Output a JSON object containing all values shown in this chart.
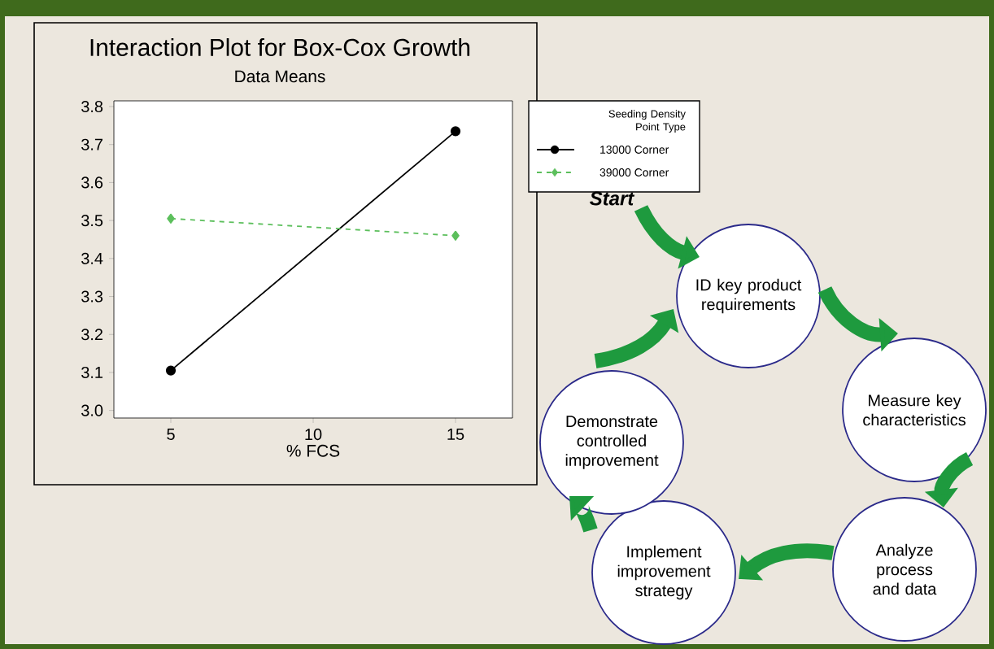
{
  "chart_data": [
    {
      "type": "line",
      "title": "Interaction Plot for Box-Cox Growth",
      "subtitle": "Data Means",
      "xlabel": "% FCS",
      "legend_title": "Seeding Density Point Type",
      "x": [
        5,
        15
      ],
      "xlim": [
        3,
        17
      ],
      "xticks": [
        5,
        10,
        15
      ],
      "ylim": [
        2.98,
        3.815
      ],
      "yticks": [
        {
          "value": 3,
          "label": "3.0"
        },
        3.1,
        3.2,
        3.3,
        3.4,
        3.5,
        3.6,
        3.7,
        3.8
      ],
      "legend": "right",
      "grid": false,
      "series": [
        {
          "name": "13000 Corner",
          "color": "#000000",
          "values": [
            3.105,
            3.735
          ],
          "marker": "circle",
          "line_style": "solid"
        },
        {
          "name": "39000 Corner",
          "color": "#5cbf5c",
          "values": [
            3.505,
            3.46
          ],
          "marker": "diamond",
          "line_style": "dashed"
        }
      ]
    },
    {
      "type": "other",
      "annotations": [
        "Start",
        "ID key product requirements",
        "Measure key characteristics",
        "Analyze process and data",
        "Implement improvement strategy",
        "Demonstrate controlled improvement"
      ]
    }
  ]
}
